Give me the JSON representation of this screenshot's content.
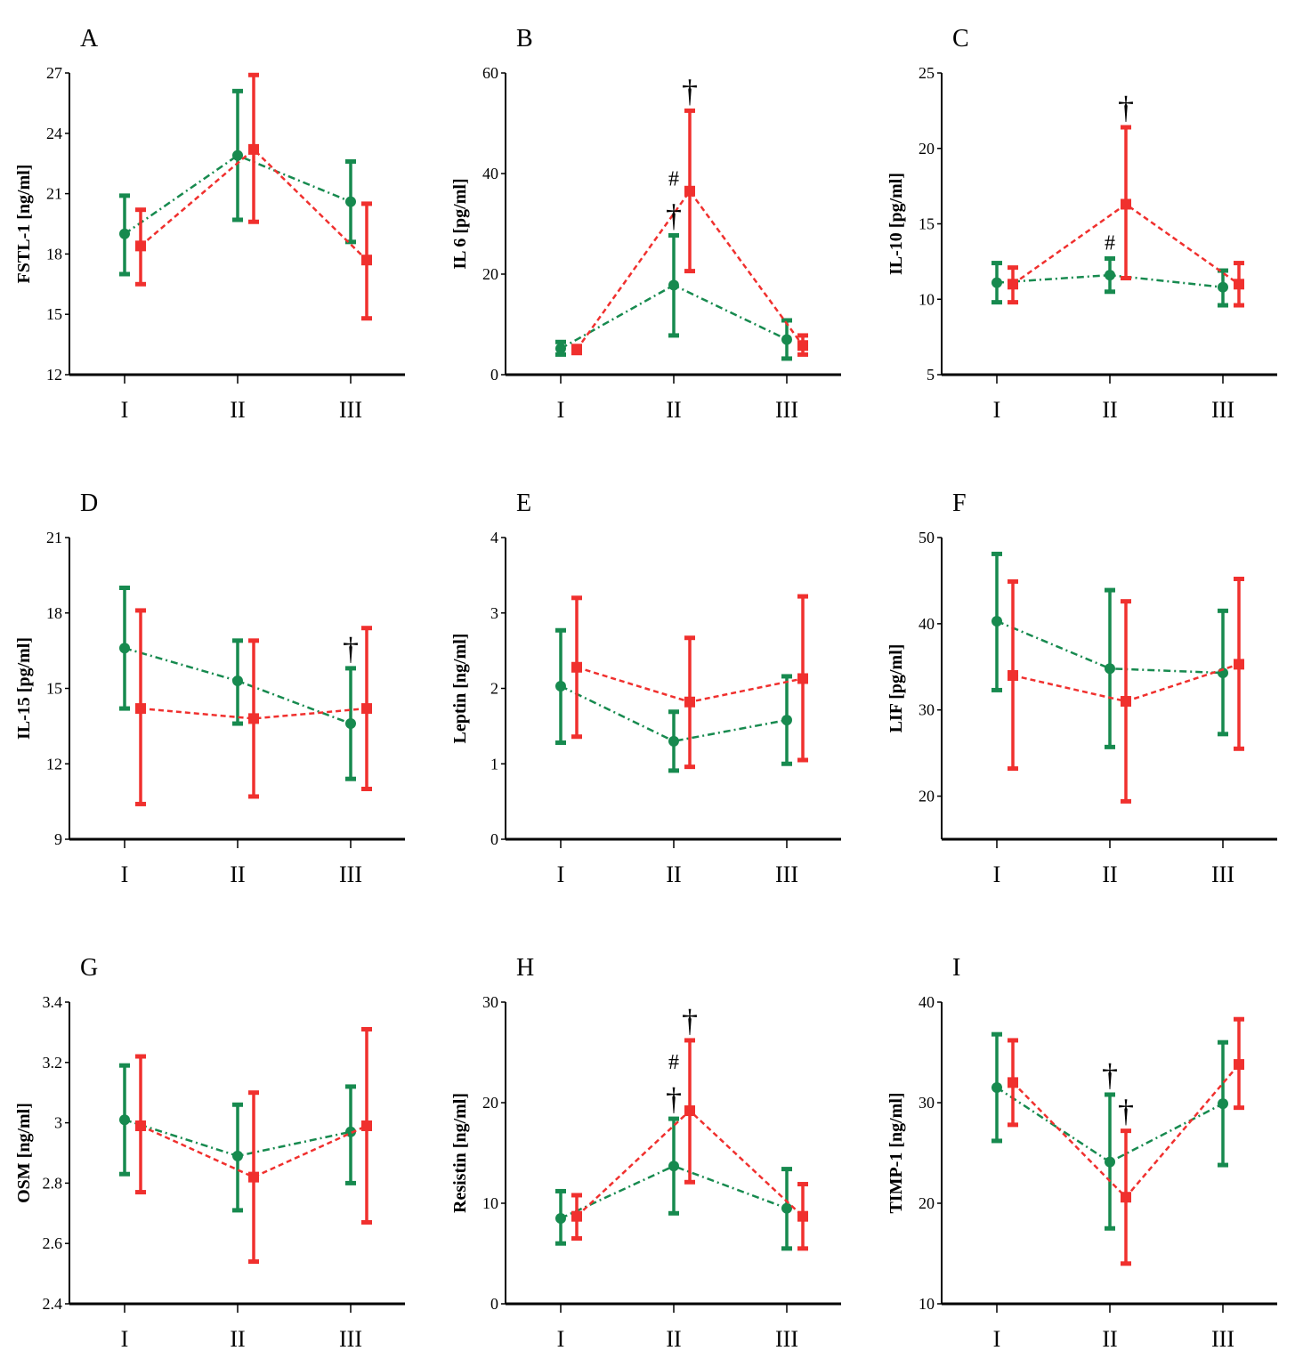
{
  "colors": {
    "green": "#178a4f",
    "red": "#f0302e"
  },
  "chart_data": [
    {
      "panel": "A",
      "type": "line",
      "ylabel": "FSTL-1 [ng/ml]",
      "ylim": [
        12,
        27
      ],
      "yticks": [
        12,
        15,
        18,
        21,
        24,
        27
      ],
      "categories": [
        "I",
        "II",
        "III"
      ],
      "series": [
        {
          "name": "green",
          "values": [
            19.0,
            22.9,
            20.6
          ],
          "lower": [
            17.0,
            19.7,
            18.6
          ],
          "upper": [
            20.9,
            26.1,
            22.6
          ]
        },
        {
          "name": "red",
          "values": [
            18.4,
            23.2,
            17.7
          ],
          "lower": [
            16.5,
            19.6,
            14.8
          ],
          "upper": [
            20.2,
            26.9,
            20.5
          ]
        }
      ],
      "annotations": []
    },
    {
      "panel": "B",
      "type": "line",
      "ylabel": "IL 6 [pg/ml]",
      "ylim": [
        0,
        60
      ],
      "yticks": [
        0,
        20,
        40,
        60
      ],
      "categories": [
        "I",
        "II",
        "III"
      ],
      "series": [
        {
          "name": "green",
          "values": [
            5.2,
            17.8,
            7.0
          ],
          "lower": [
            4.0,
            7.8,
            3.2
          ],
          "upper": [
            6.5,
            27.7,
            10.8
          ]
        },
        {
          "name": "red",
          "values": [
            5.0,
            36.5,
            5.8
          ],
          "lower": [
            4.3,
            20.6,
            4.0
          ],
          "upper": [
            5.7,
            52.5,
            7.8
          ]
        }
      ],
      "annotations": [
        {
          "text": "†",
          "series": "red",
          "cat": 1,
          "level": 1
        },
        {
          "text": "#",
          "series": "green",
          "cat": 1,
          "level": 2
        },
        {
          "text": "†",
          "series": "green",
          "cat": 1,
          "level": 1
        }
      ]
    },
    {
      "panel": "C",
      "type": "line",
      "ylabel": "IL-10 [pg/ml]",
      "ylim": [
        5,
        25
      ],
      "yticks": [
        5,
        10,
        15,
        20,
        25
      ],
      "categories": [
        "I",
        "II",
        "III"
      ],
      "series": [
        {
          "name": "green",
          "values": [
            11.1,
            11.6,
            10.8
          ],
          "lower": [
            9.8,
            10.5,
            9.6
          ],
          "upper": [
            12.4,
            12.7,
            11.9
          ]
        },
        {
          "name": "red",
          "values": [
            11.0,
            16.3,
            11.0
          ],
          "lower": [
            9.8,
            11.4,
            9.6
          ],
          "upper": [
            12.1,
            21.4,
            12.4
          ]
        }
      ],
      "annotations": [
        {
          "text": "†",
          "series": "red",
          "cat": 1,
          "level": 1
        },
        {
          "text": "#",
          "series": "green",
          "cat": 1,
          "level": 1
        }
      ]
    },
    {
      "panel": "D",
      "type": "line",
      "ylabel": "IL-15 [pg/ml]",
      "ylim": [
        9,
        21
      ],
      "yticks": [
        9,
        12,
        15,
        18,
        21
      ],
      "categories": [
        "I",
        "II",
        "III"
      ],
      "series": [
        {
          "name": "green",
          "values": [
            16.6,
            15.3,
            13.6
          ],
          "lower": [
            14.2,
            13.6,
            11.4
          ],
          "upper": [
            19.0,
            16.9,
            15.8
          ]
        },
        {
          "name": "red",
          "values": [
            14.2,
            13.8,
            14.2
          ],
          "lower": [
            10.4,
            10.7,
            11.0
          ],
          "upper": [
            18.1,
            16.9,
            17.4
          ]
        }
      ],
      "annotations": [
        {
          "text": "†",
          "series": "green",
          "cat": 2,
          "level": 1
        }
      ]
    },
    {
      "panel": "E",
      "type": "line",
      "ylabel": "Leptin [ng/ml]",
      "ylim": [
        0,
        4
      ],
      "yticks": [
        0,
        1,
        2,
        3,
        4
      ],
      "categories": [
        "I",
        "II",
        "III"
      ],
      "series": [
        {
          "name": "green",
          "values": [
            2.03,
            1.3,
            1.58
          ],
          "lower": [
            1.28,
            0.91,
            1.0
          ],
          "upper": [
            2.77,
            1.69,
            2.16
          ]
        },
        {
          "name": "red",
          "values": [
            2.28,
            1.82,
            2.13
          ],
          "lower": [
            1.36,
            0.96,
            1.05
          ],
          "upper": [
            3.2,
            2.67,
            3.22
          ]
        }
      ],
      "annotations": []
    },
    {
      "panel": "F",
      "type": "line",
      "ylabel": "LIF [pg/ml]",
      "ylim": [
        15,
        50
      ],
      "yticks": [
        20,
        30,
        40,
        50
      ],
      "categories": [
        "I",
        "II",
        "III"
      ],
      "series": [
        {
          "name": "green",
          "values": [
            40.3,
            34.8,
            34.3
          ],
          "lower": [
            32.3,
            25.7,
            27.2
          ],
          "upper": [
            48.1,
            43.9,
            41.5
          ]
        },
        {
          "name": "red",
          "values": [
            34.0,
            31.0,
            35.3
          ],
          "lower": [
            23.2,
            19.4,
            25.5
          ],
          "upper": [
            44.9,
            42.6,
            45.2
          ]
        }
      ],
      "annotations": []
    },
    {
      "panel": "G",
      "type": "line",
      "ylabel": "OSM [ng/ml]",
      "ylim": [
        2.4,
        3.4
      ],
      "yticks": [
        2.4,
        2.6,
        2.8,
        3.0,
        3.2,
        3.4
      ],
      "categories": [
        "I",
        "II",
        "III"
      ],
      "series": [
        {
          "name": "green",
          "values": [
            3.01,
            2.89,
            2.97
          ],
          "lower": [
            2.83,
            2.71,
            2.8
          ],
          "upper": [
            3.19,
            3.06,
            3.12
          ]
        },
        {
          "name": "red",
          "values": [
            2.99,
            2.82,
            2.99
          ],
          "lower": [
            2.77,
            2.54,
            2.67
          ],
          "upper": [
            3.22,
            3.1,
            3.31
          ]
        }
      ],
      "annotations": []
    },
    {
      "panel": "H",
      "type": "line",
      "ylabel": "Resistin [ng/ml]",
      "ylim": [
        0,
        30
      ],
      "yticks": [
        0,
        10,
        20,
        30
      ],
      "categories": [
        "I",
        "II",
        "III"
      ],
      "series": [
        {
          "name": "green",
          "values": [
            8.5,
            13.7,
            9.5
          ],
          "lower": [
            6.0,
            9.0,
            5.5
          ],
          "upper": [
            11.2,
            18.4,
            13.4
          ]
        },
        {
          "name": "red",
          "values": [
            8.7,
            19.2,
            8.7
          ],
          "lower": [
            6.5,
            12.1,
            5.5
          ],
          "upper": [
            10.8,
            26.2,
            11.9
          ]
        }
      ],
      "annotations": [
        {
          "text": "†",
          "series": "red",
          "cat": 1,
          "level": 1
        },
        {
          "text": "#",
          "series": "green",
          "cat": 1,
          "level": 2
        },
        {
          "text": "†",
          "series": "green",
          "cat": 1,
          "level": 1
        }
      ]
    },
    {
      "panel": "I",
      "type": "line",
      "ylabel": "TIMP-1 [ng/ml]",
      "ylim": [
        10,
        40
      ],
      "yticks": [
        10,
        20,
        30,
        40
      ],
      "categories": [
        "I",
        "II",
        "III"
      ],
      "series": [
        {
          "name": "green",
          "values": [
            31.5,
            24.1,
            29.9
          ],
          "lower": [
            26.2,
            17.5,
            23.8
          ],
          "upper": [
            36.8,
            30.8,
            36.0
          ]
        },
        {
          "name": "red",
          "values": [
            32.0,
            20.6,
            33.8
          ],
          "lower": [
            27.8,
            14.0,
            29.5
          ],
          "upper": [
            36.2,
            27.2,
            38.3
          ]
        }
      ],
      "annotations": [
        {
          "text": "†",
          "series": "green",
          "cat": 1,
          "level": 1
        },
        {
          "text": "†",
          "series": "red",
          "cat": 1,
          "level": 1
        }
      ]
    }
  ]
}
